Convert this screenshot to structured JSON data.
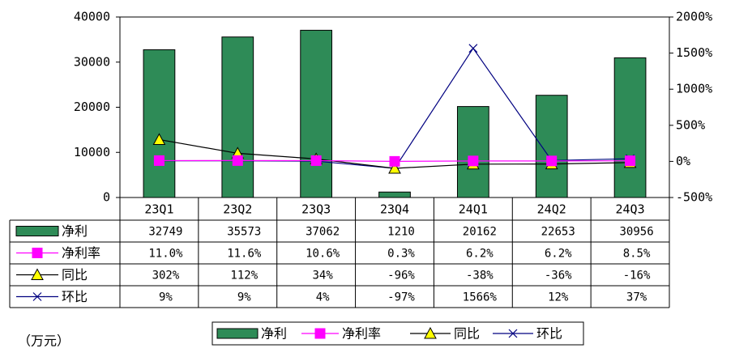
{
  "chart_data": {
    "type": "bar",
    "categories": [
      "23Q1",
      "23Q2",
      "23Q3",
      "23Q4",
      "24Q1",
      "24Q2",
      "24Q3"
    ],
    "y_left": {
      "ticks": [
        "0",
        "10000",
        "20000",
        "30000",
        "40000"
      ],
      "range": [
        0,
        40000
      ]
    },
    "y_right": {
      "ticks": [
        "-500%",
        "0%",
        "500%",
        "1000%",
        "1500%",
        "2000%"
      ],
      "range": [
        -500,
        2000
      ]
    },
    "unit_label": "（万元）",
    "colors": {
      "bar": "#2e8b57",
      "net_margin": "#ff00ff",
      "yoy": "#000000",
      "yoy_marker": "#ffff00",
      "qoq": "#000080"
    },
    "series": [
      {
        "name": "净利",
        "kind": "bar",
        "axis": "left",
        "values": [
          32749,
          35573,
          37062,
          1210,
          20162,
          22653,
          30956
        ],
        "labels": [
          "32749",
          "35573",
          "37062",
          "1210",
          "20162",
          "22653",
          "30956"
        ]
      },
      {
        "name": "净利率",
        "kind": "line",
        "marker": "square",
        "axis": "right",
        "values": [
          11.0,
          11.6,
          10.6,
          0.3,
          6.2,
          6.2,
          8.5
        ],
        "labels": [
          "11.0%",
          "11.6%",
          "10.6%",
          "0.3%",
          "6.2%",
          "6.2%",
          "8.5%"
        ]
      },
      {
        "name": "同比",
        "kind": "line",
        "marker": "triangle",
        "axis": "right",
        "values": [
          302,
          112,
          34,
          -96,
          -38,
          -36,
          -16
        ],
        "labels": [
          "302%",
          "112%",
          "34%",
          "-96%",
          "-38%",
          "-36%",
          "-16%"
        ]
      },
      {
        "name": "环比",
        "kind": "line",
        "marker": "x",
        "axis": "right",
        "values": [
          9,
          9,
          4,
          -97,
          1566,
          12,
          37
        ],
        "labels": [
          "9%",
          "9%",
          "4%",
          "-97%",
          "1566%",
          "12%",
          "37%"
        ]
      }
    ],
    "legend_position": "bottom"
  }
}
